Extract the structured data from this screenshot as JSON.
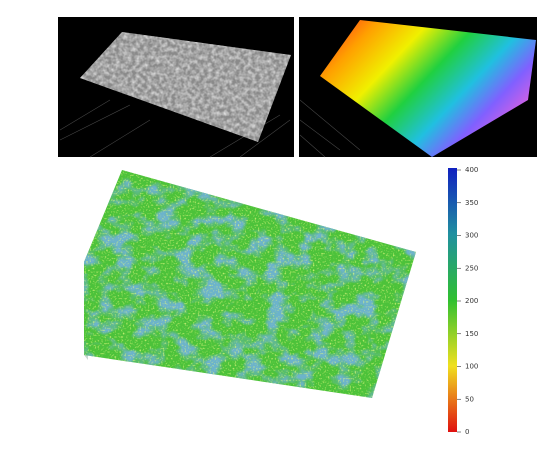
{
  "colorbar": {
    "ticks": [
      400,
      350,
      300,
      250,
      200,
      150,
      100,
      50,
      0
    ]
  }
}
